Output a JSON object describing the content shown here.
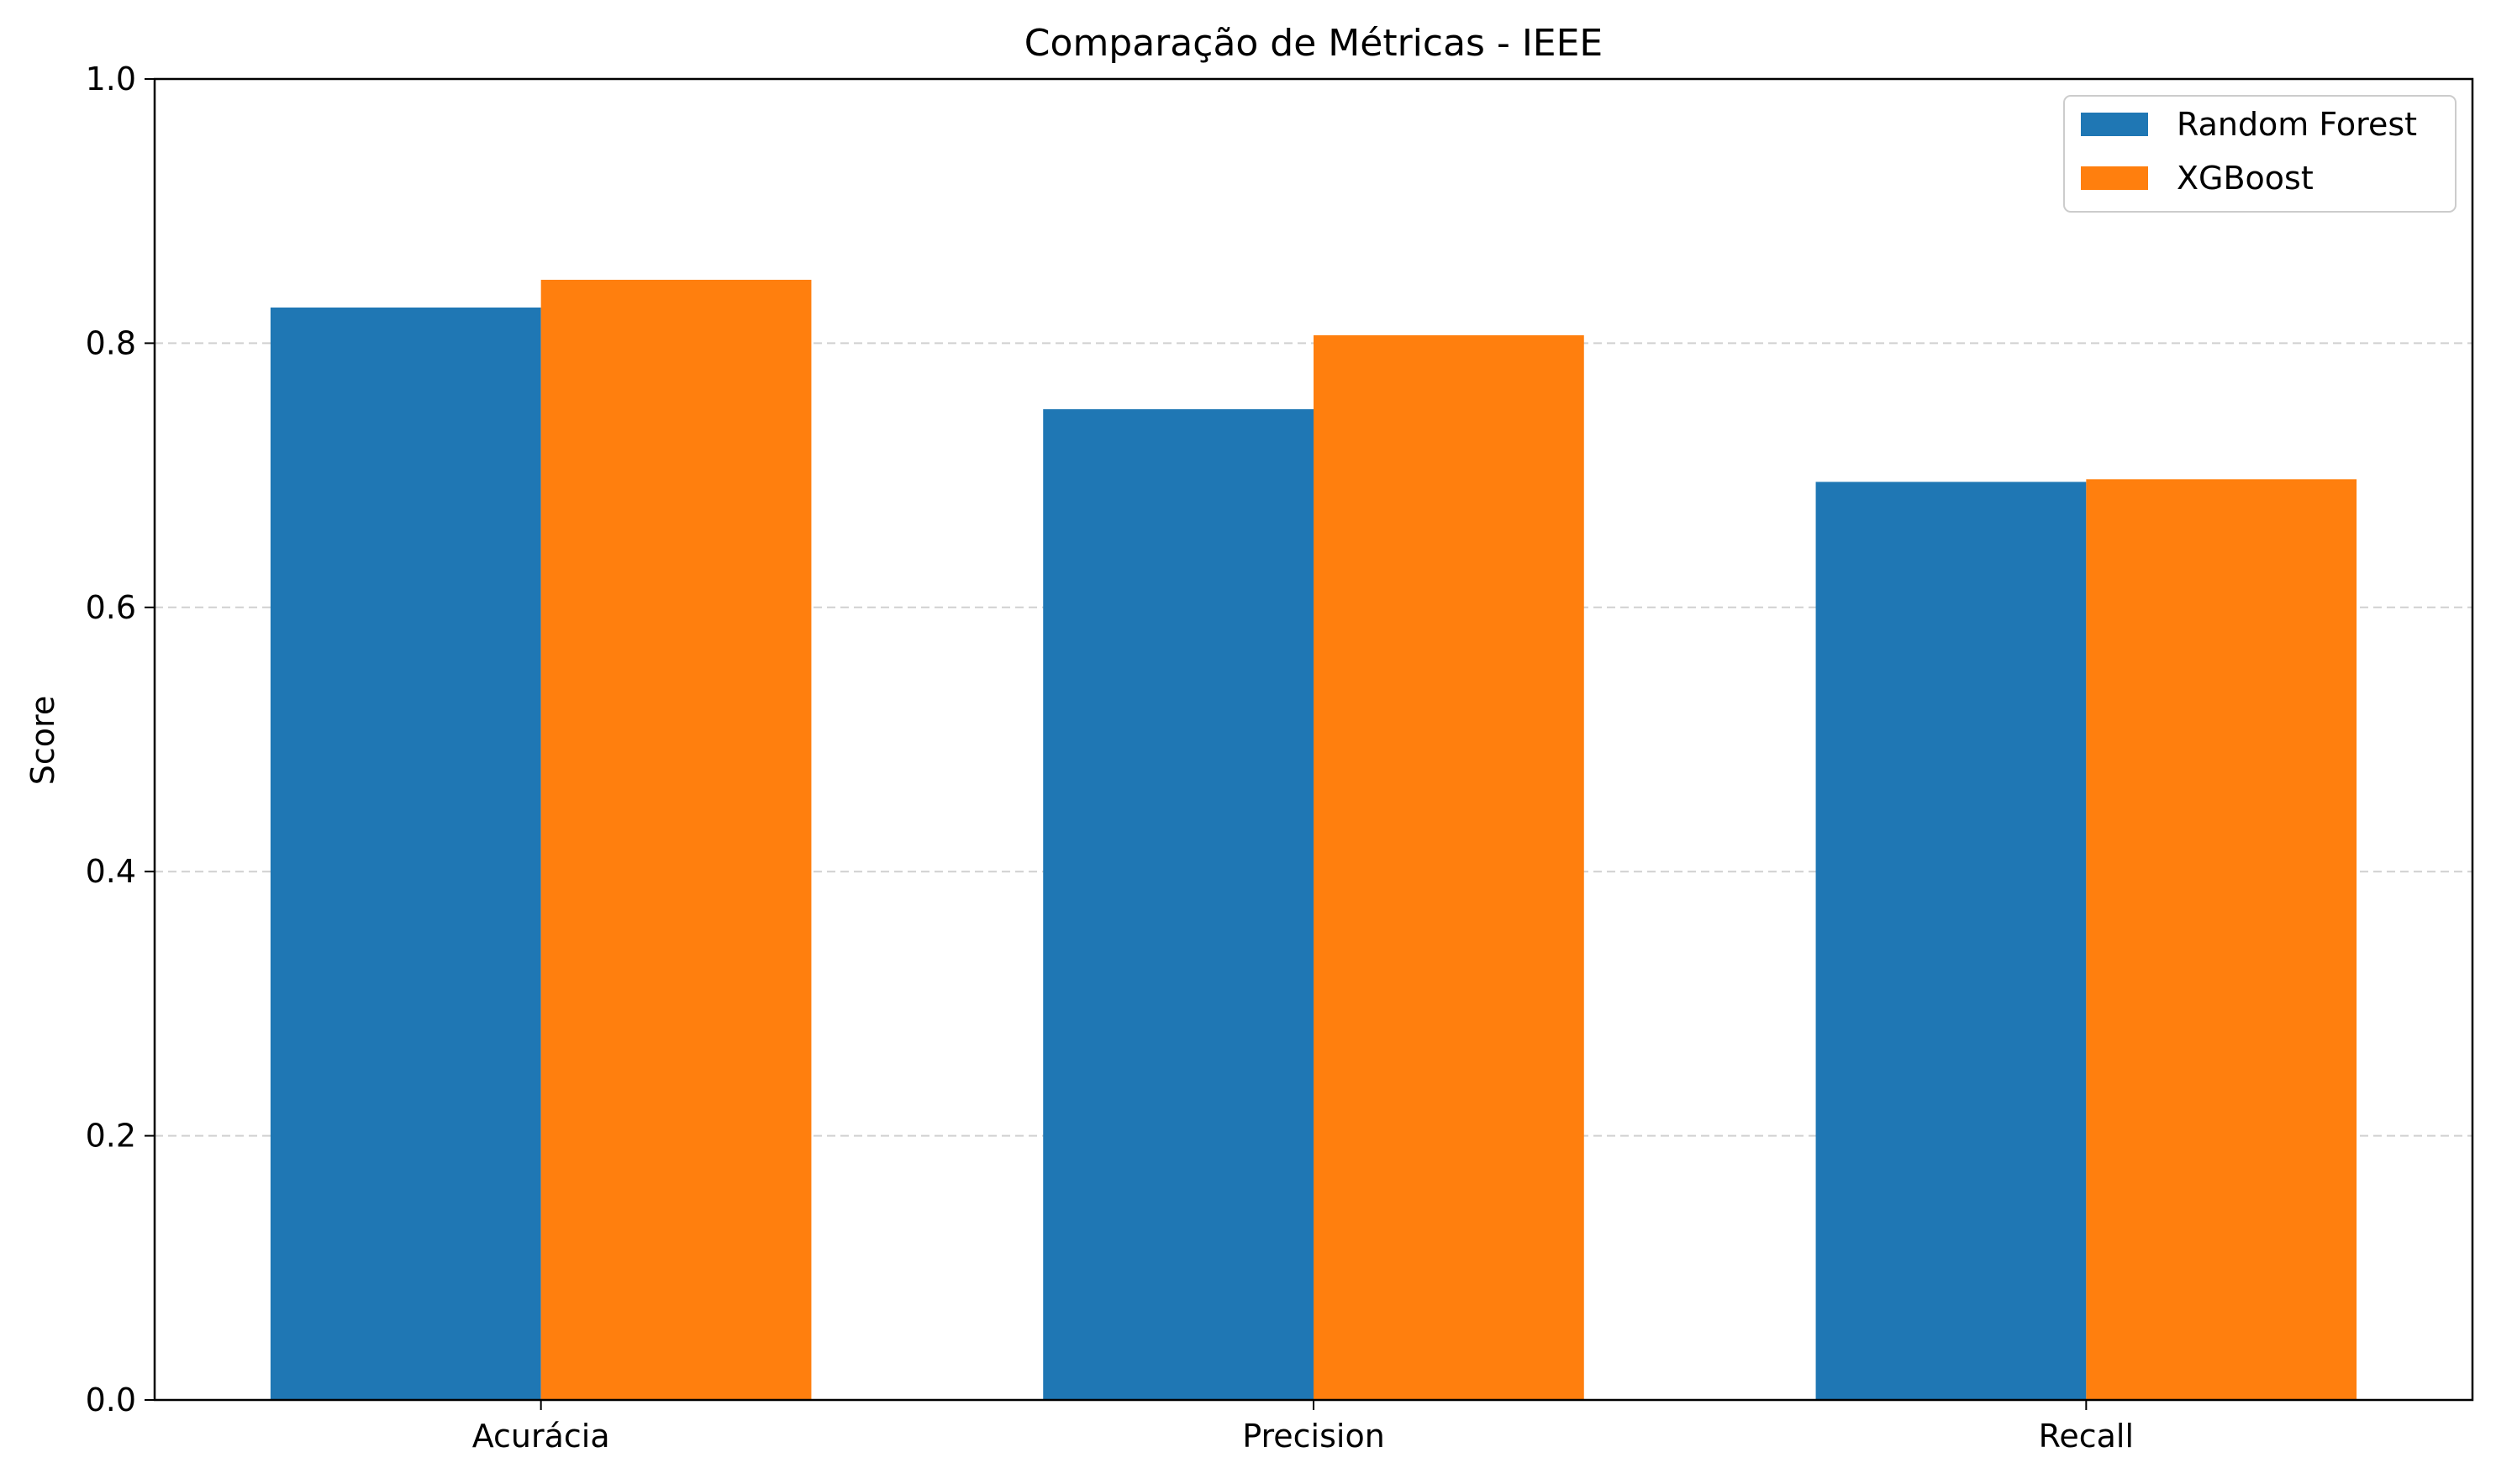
{
  "chart_data": {
    "type": "bar",
    "title": "Comparação de Métricas - IEEE",
    "xlabel": "",
    "ylabel": "Score",
    "categories": [
      "Acurácia",
      "Precision",
      "Recall"
    ],
    "series": [
      {
        "name": "Random Forest",
        "values": [
          0.827,
          0.75,
          0.695
        ],
        "color": "#1f77b4"
      },
      {
        "name": "XGBoost",
        "values": [
          0.848,
          0.806,
          0.697
        ],
        "color": "#ff7f0e"
      }
    ],
    "ylim": [
      0,
      1.0
    ],
    "yticks": [
      "0.0",
      "0.2",
      "0.4",
      "0.6",
      "0.8",
      "1.0"
    ],
    "grid": "y dashed",
    "legend_position": "top-right"
  }
}
